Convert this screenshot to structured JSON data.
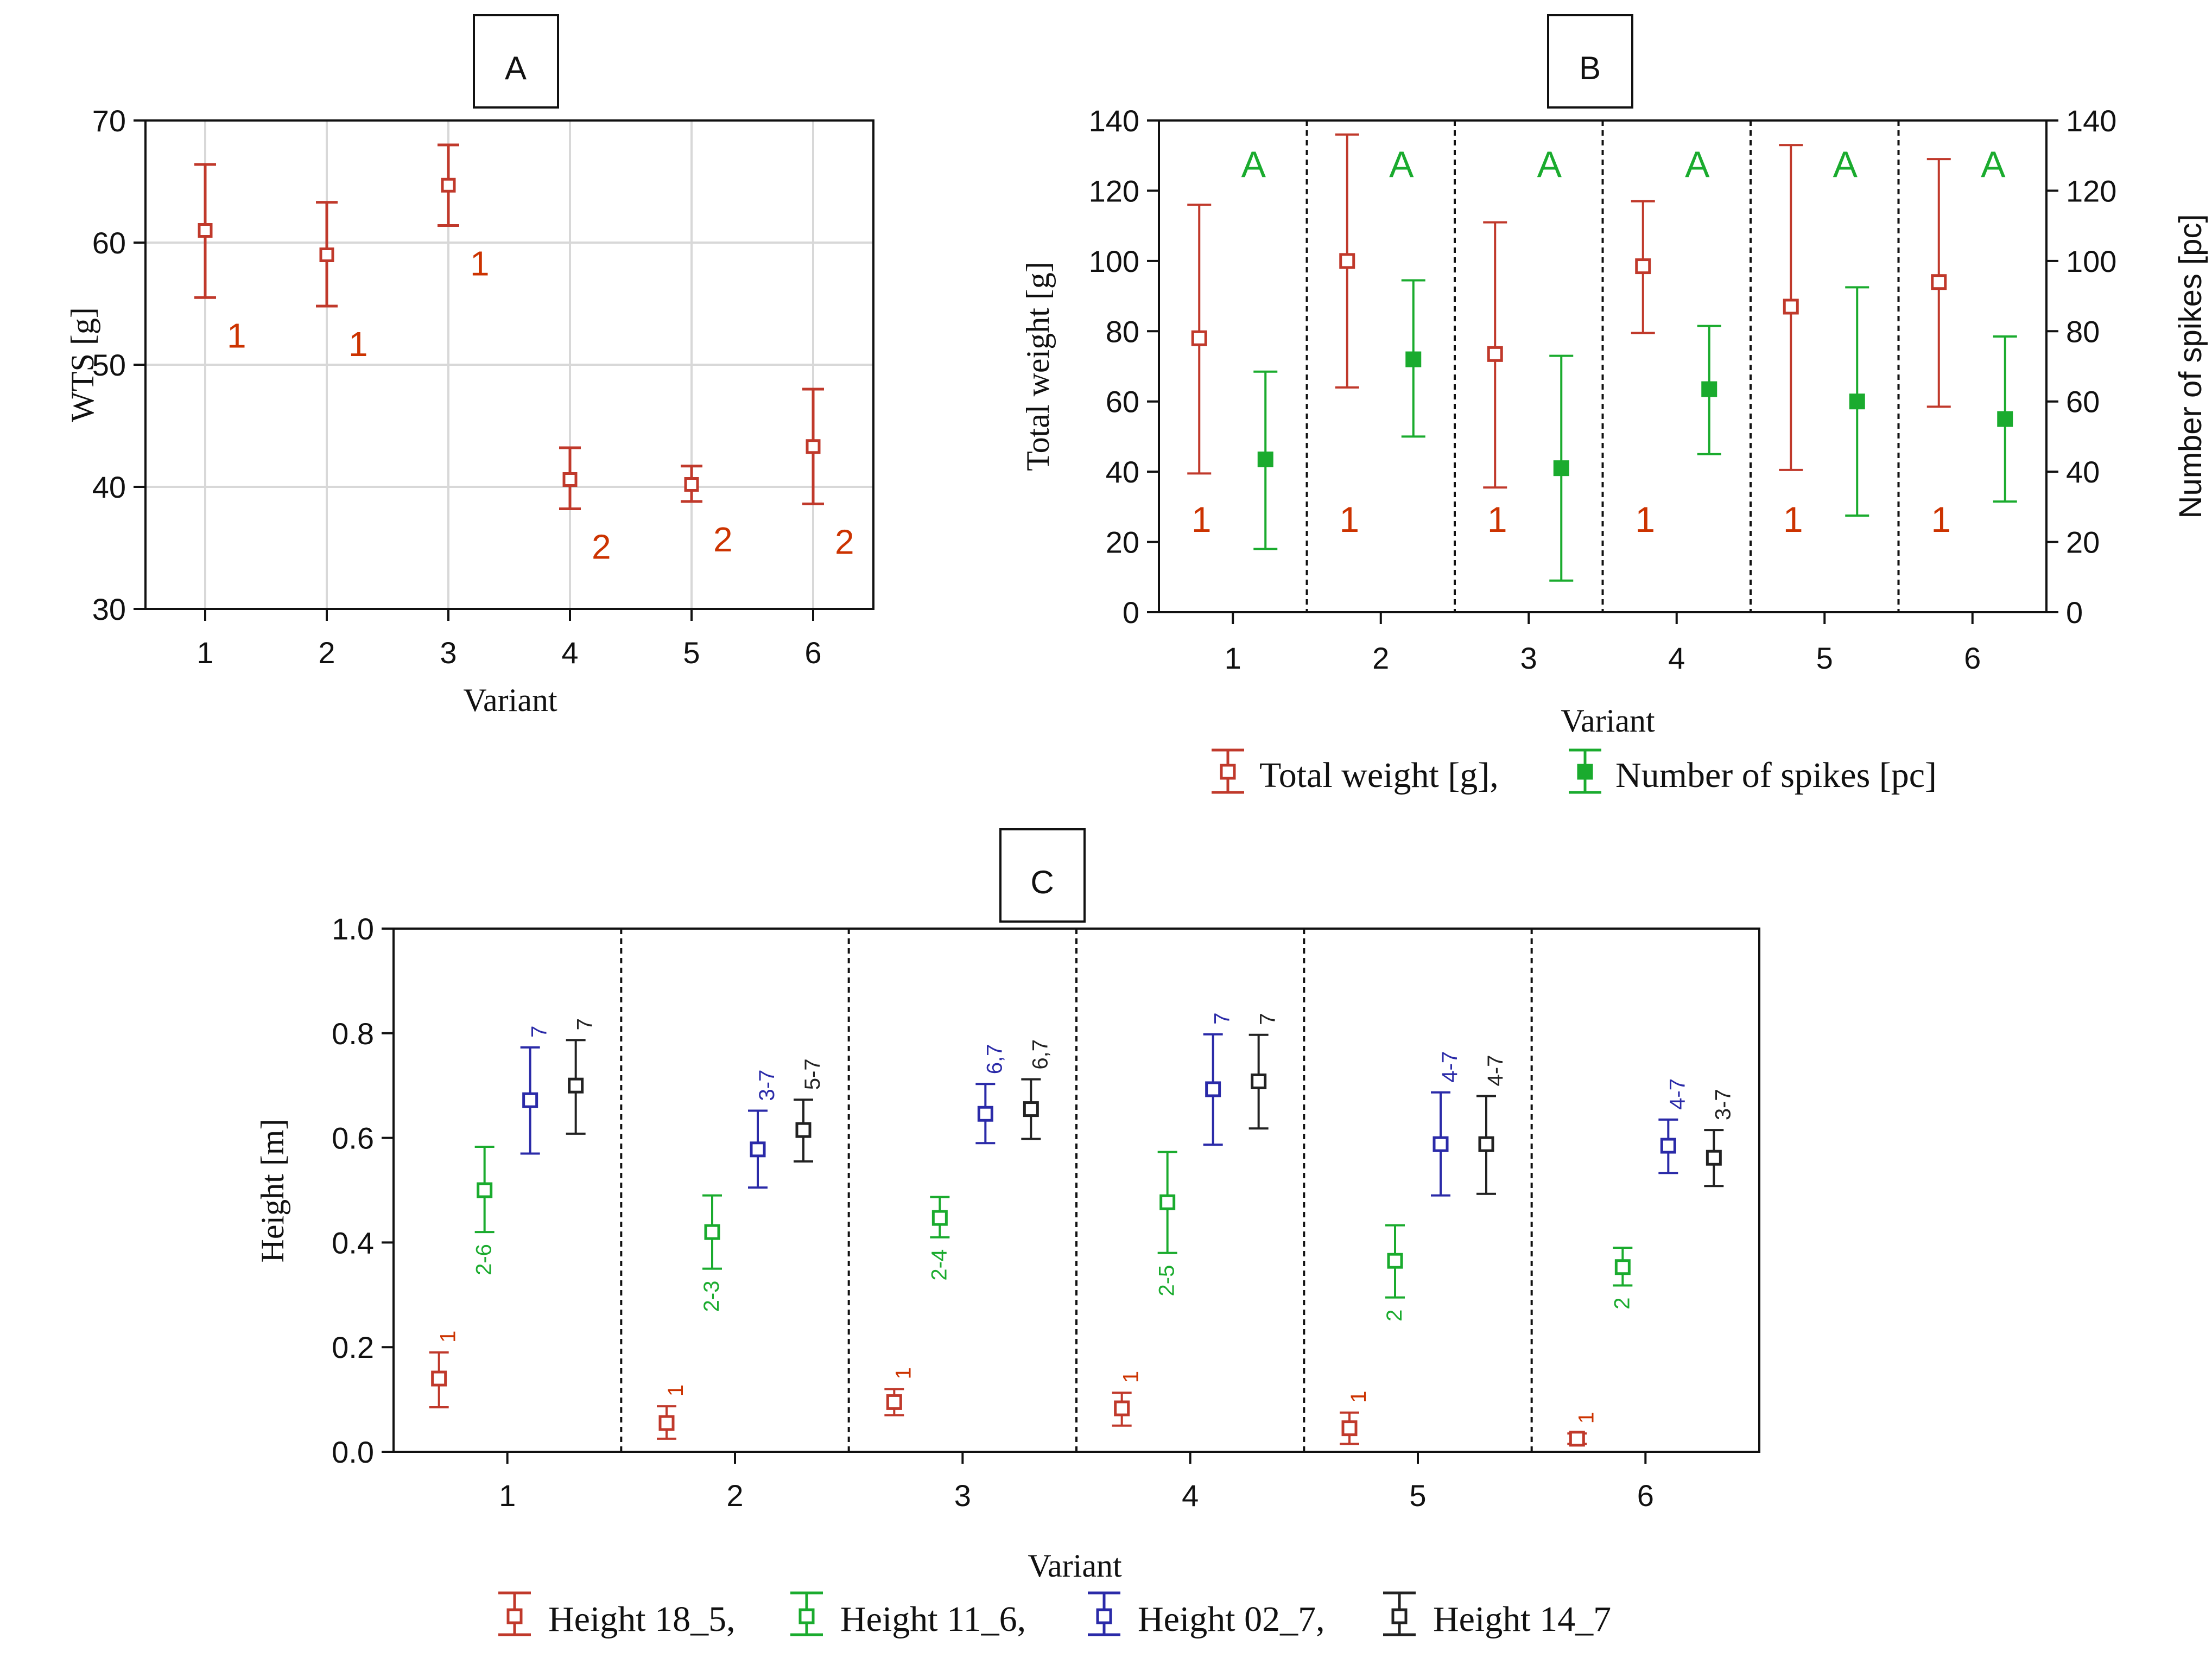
{
  "colors": {
    "red": "#c0392b",
    "red_label": "#cc3300",
    "green": "#1aab2e",
    "blue": "#2a2aa8",
    "black": "#222222",
    "grid": "#d8d8d8"
  },
  "panel_A": {
    "label": "A",
    "sig_labels": [
      "1",
      "1",
      "1",
      "2",
      "2",
      "2"
    ]
  },
  "panel_B": {
    "label": "B",
    "sig_labels_weight": [
      "1",
      "1",
      "1",
      "1",
      "1",
      "1"
    ],
    "sig_labels_spikes": [
      "A",
      "A",
      "A",
      "A",
      "A",
      "A"
    ],
    "legend": [
      "Total weight [g],",
      "Number of spikes [pc]"
    ]
  },
  "panel_C": {
    "label": "C",
    "sig_labels": {
      "Height 18_5": [
        "1",
        "1",
        "1",
        "1",
        "1",
        "1"
      ],
      "Height 11_6": [
        "2-6",
        "2-3",
        "2-4",
        "2-5",
        "2",
        "2"
      ],
      "Height 02_7": [
        "7",
        "3-7",
        "6,7",
        "7",
        "4-7",
        "4-7"
      ],
      "Height 14_7": [
        "7",
        "5-7",
        "6,7",
        "7",
        "4-7",
        "3-7"
      ]
    },
    "legend": [
      "Height 18_5,",
      "Height 11_6,",
      "Height 02_7,",
      "Height 14_7"
    ]
  },
  "chart_data": [
    {
      "id": "A",
      "type": "scatter",
      "title": "",
      "xlabel": "Variant",
      "ylabel": "WTS [g]",
      "categories": [
        "1",
        "2",
        "3",
        "4",
        "5",
        "6"
      ],
      "ylim": [
        30,
        70
      ],
      "yticks": [
        "30",
        "40",
        "50",
        "60",
        "70"
      ],
      "grid": true,
      "series": [
        {
          "name": "WTS [g]",
          "values": [
            61,
            59,
            64.7,
            40.6,
            40.2,
            43.3
          ],
          "lower": [
            55.5,
            54.8,
            61.4,
            38.2,
            38.8,
            38.6
          ],
          "upper": [
            66.4,
            63.3,
            68,
            43.2,
            41.7,
            48
          ]
        }
      ]
    },
    {
      "id": "B",
      "type": "scatter",
      "title": "",
      "xlabel": "Variant",
      "ylabel": "Total weight [g]",
      "y2label": "Number of spikes [pc]",
      "categories": [
        "1",
        "2",
        "3",
        "4",
        "5",
        "6"
      ],
      "ylim": [
        0,
        140
      ],
      "yticks": [
        "0",
        "20",
        "40",
        "60",
        "80",
        "100",
        "120",
        "140"
      ],
      "series": [
        {
          "name": "Total weight [g]",
          "values": [
            78,
            100,
            73.5,
            98.5,
            87,
            94
          ],
          "lower": [
            39.5,
            64,
            35.5,
            79.5,
            40.5,
            58.5
          ],
          "upper": [
            116,
            136,
            111,
            117,
            133,
            129
          ]
        },
        {
          "name": "Number of spikes [pc]",
          "values": [
            43.5,
            72,
            41,
            63.5,
            60,
            55
          ],
          "lower": [
            18,
            50,
            9,
            45,
            27.5,
            31.5
          ],
          "upper": [
            68.5,
            94.5,
            73,
            81.5,
            92.5,
            78.5
          ]
        }
      ]
    },
    {
      "id": "C",
      "type": "scatter",
      "title": "",
      "xlabel": "Variant",
      "ylabel": "Height [m]",
      "categories": [
        "1",
        "2",
        "3",
        "4",
        "5",
        "6"
      ],
      "ylim": [
        0,
        1
      ],
      "yticks": [
        "0.0",
        "0.2",
        "0.4",
        "0.6",
        "0.8",
        "1.0"
      ],
      "series": [
        {
          "name": "Height 18_5",
          "values": [
            0.14,
            0.055,
            0.095,
            0.083,
            0.045,
            0.025
          ],
          "lower": [
            0.085,
            0.025,
            0.07,
            0.05,
            0.015,
            0.015
          ],
          "upper": [
            0.19,
            0.087,
            0.12,
            0.113,
            0.075,
            0.035
          ]
        },
        {
          "name": "Height 11_6",
          "values": [
            0.5,
            0.42,
            0.447,
            0.477,
            0.365,
            0.353
          ],
          "lower": [
            0.42,
            0.35,
            0.41,
            0.38,
            0.295,
            0.318
          ],
          "upper": [
            0.583,
            0.49,
            0.487,
            0.573,
            0.433,
            0.39
          ]
        },
        {
          "name": "Height 02_7",
          "values": [
            0.672,
            0.578,
            0.646,
            0.693,
            0.588,
            0.585
          ],
          "lower": [
            0.57,
            0.505,
            0.59,
            0.587,
            0.49,
            0.533
          ],
          "upper": [
            0.773,
            0.652,
            0.703,
            0.798,
            0.687,
            0.635
          ]
        },
        {
          "name": "Height 14_7",
          "values": [
            0.7,
            0.615,
            0.655,
            0.708,
            0.588,
            0.562
          ],
          "lower": [
            0.608,
            0.555,
            0.598,
            0.618,
            0.493,
            0.508
          ],
          "upper": [
            0.787,
            0.673,
            0.712,
            0.797,
            0.68,
            0.615
          ]
        }
      ]
    }
  ]
}
